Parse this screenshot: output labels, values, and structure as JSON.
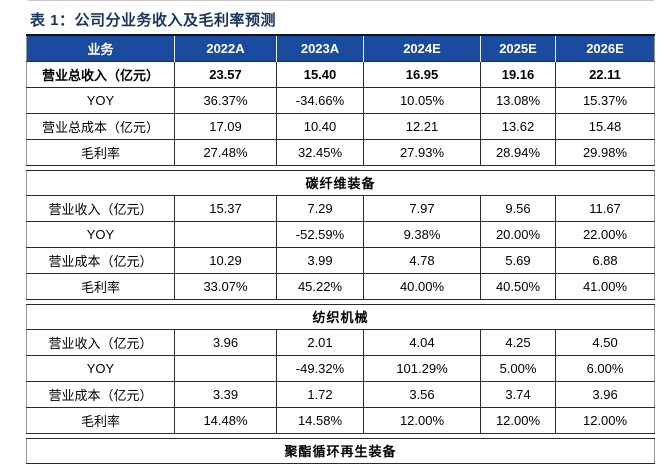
{
  "title": "表 1：公司分业务收入及毛利率预测",
  "colors": {
    "header_bg": "#1B4B9E",
    "title_color": "#16365D",
    "grid_line": "#2B2B2B"
  },
  "table": {
    "columns": [
      "业务",
      "2022A",
      "2023A",
      "2024E",
      "2025E",
      "2026E"
    ],
    "sections": [
      {
        "header": null,
        "rows": [
          {
            "label": "营业总收入（亿元）",
            "bold": true,
            "values": [
              "23.57",
              "15.40",
              "16.95",
              "19.16",
              "22.11"
            ]
          },
          {
            "label": "YOY",
            "bold": false,
            "values": [
              "36.37%",
              "-34.66%",
              "10.05%",
              "13.08%",
              "15.37%"
            ]
          },
          {
            "label": "营业总成本（亿元）",
            "bold": false,
            "values": [
              "17.09",
              "10.40",
              "12.21",
              "13.62",
              "15.48"
            ]
          },
          {
            "label": "毛利率",
            "bold": false,
            "values": [
              "27.48%",
              "32.45%",
              "27.93%",
              "28.94%",
              "29.98%"
            ]
          }
        ]
      },
      {
        "header": "碳纤维装备",
        "rows": [
          {
            "label": "营业收入（亿元）",
            "bold": false,
            "values": [
              "15.37",
              "7.29",
              "7.97",
              "9.56",
              "11.67"
            ]
          },
          {
            "label": "YOY",
            "bold": false,
            "values": [
              "",
              "-52.59%",
              "9.38%",
              "20.00%",
              "22.00%"
            ]
          },
          {
            "label": "营业成本（亿元）",
            "bold": false,
            "values": [
              "10.29",
              "3.99",
              "4.78",
              "5.69",
              "6.88"
            ]
          },
          {
            "label": "毛利率",
            "bold": false,
            "values": [
              "33.07%",
              "45.22%",
              "40.00%",
              "40.50%",
              "41.00%"
            ]
          }
        ]
      },
      {
        "header": "纺织机械",
        "rows": [
          {
            "label": "营业收入（亿元）",
            "bold": false,
            "values": [
              "3.96",
              "2.01",
              "4.04",
              "4.25",
              "4.50"
            ]
          },
          {
            "label": "YOY",
            "bold": false,
            "values": [
              "",
              "-49.32%",
              "101.29%",
              "5.00%",
              "6.00%"
            ]
          },
          {
            "label": "营业成本（亿元）",
            "bold": false,
            "values": [
              "3.39",
              "1.72",
              "3.56",
              "3.74",
              "3.96"
            ]
          },
          {
            "label": "毛利率",
            "bold": false,
            "values": [
              "14.48%",
              "14.58%",
              "12.00%",
              "12.00%",
              "12.00%"
            ]
          }
        ]
      },
      {
        "header": "聚酯循环再生装备",
        "rows": []
      }
    ]
  }
}
